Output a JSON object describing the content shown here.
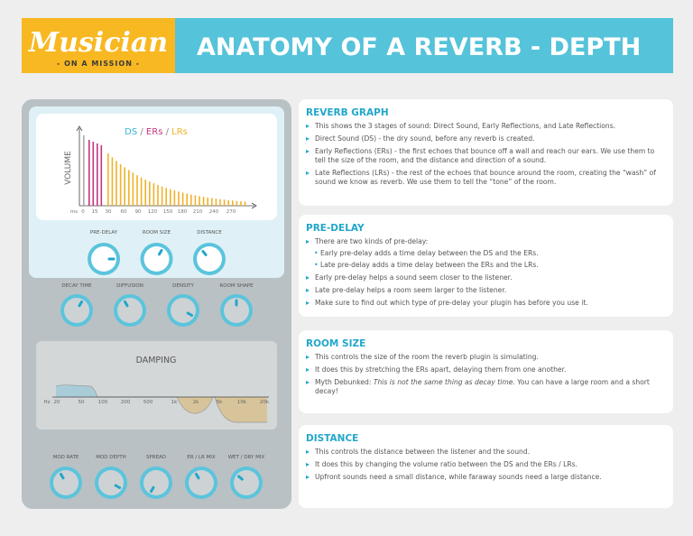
{
  "header": {
    "logo": {
      "name": "Musician",
      "tagline": "- ON A MISSION -"
    },
    "title": "ANATOMY OF A REVERB - DEPTH"
  },
  "plugin": {
    "graph": {
      "title_parts": [
        "DS",
        " / ",
        "ERs",
        " / ",
        "LRs"
      ],
      "y_label": "VOLUME",
      "x_labels": [
        "ms",
        "0",
        "15",
        "30",
        "60",
        "90",
        "120",
        "150",
        "180",
        "210",
        "240",
        "270"
      ]
    },
    "top_knobs": [
      "PRE-DELAY",
      "ROOM SIZE",
      "DISTANCE"
    ],
    "middle_knobs": [
      "DECAY TIME",
      "DIFFUSION",
      "DENSITY",
      "ROOM SHAPE"
    ],
    "damping": {
      "title": "DAMPING",
      "x_labels": [
        "Hz",
        "20",
        "50",
        "100",
        "200",
        "500",
        "1k",
        "2k",
        "5k",
        "10k",
        "20k"
      ]
    },
    "bottom_knobs": [
      "MOD RATE",
      "MOD DEPTH",
      "SPREAD",
      "ER / LR MIX",
      "WET / DRY MIX"
    ]
  },
  "sections": [
    {
      "heading": "REVERB GRAPH",
      "items": [
        {
          "text": "This shows the 3 stages of sound: Direct Sound, Early Reflections, and Late Reflections."
        },
        {
          "text": "Direct Sound (DS) - the dry sound, before any reverb is created."
        },
        {
          "text": "Early Reflections (ERs) - the first echoes that bounce off a wall and reach our ears. We use them to tell the size of the room, and the distance and direction of a sound."
        },
        {
          "text": "Late Reflections (LRs) - the rest of the echoes that bounce around the room, creating the “wash” of sound we know as reverb. We use them to tell the “tone” of the room."
        }
      ]
    },
    {
      "heading": "PRE-DELAY",
      "items": [
        {
          "text": "There are two kinds of pre-delay:",
          "subitems": [
            "Early pre-delay adds a time delay between the DS and the ERs.",
            "Late pre-delay adds a time delay between the ERs and the LRs."
          ]
        },
        {
          "text": "Early pre-delay helps a sound seem closer to the listener."
        },
        {
          "text": "Late pre-delay helps a room seem larger to the listener."
        },
        {
          "text": "Make sure to find out which type of pre-delay your plugin has before you use it."
        }
      ]
    },
    {
      "heading": "ROOM SIZE",
      "items": [
        {
          "text": "This controls the size of the room the reverb plugin is simulating."
        },
        {
          "text": "It does this by stretching the ERs apart, delaying them from one another."
        },
        {
          "parts": [
            "Myth Debunked: ",
            "This is not the same thing as decay time.",
            " You can have a large room and a short decay!"
          ]
        }
      ]
    },
    {
      "heading": "DISTANCE",
      "items": [
        {
          "text": "This controls the distance between the listener and the sound."
        },
        {
          "text": "It does this by changing the volume ratio between the DS and the ERs / LRs."
        },
        {
          "text": "Upfront sounds need a small distance, while faraway sounds need a large distance."
        }
      ]
    }
  ]
}
